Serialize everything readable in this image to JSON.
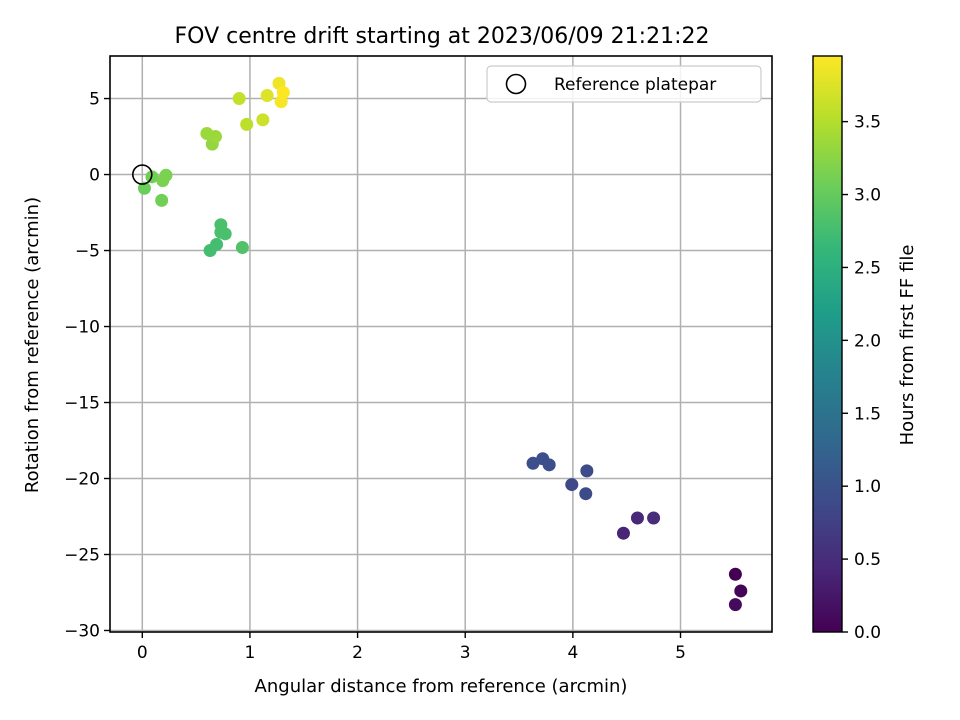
{
  "chart_data": {
    "type": "scatter",
    "title": "FOV centre drift starting at 2023/06/09 21:21:22",
    "xlabel": "Angular distance from reference (arcmin)",
    "ylabel": "Rotation from reference (arcmin)",
    "xlim": [
      -0.3,
      5.85
    ],
    "ylim": [
      -30.1,
      7.8
    ],
    "xticks": [
      0,
      1,
      2,
      3,
      4,
      5
    ],
    "xtick_labels": [
      "0",
      "1",
      "2",
      "3",
      "4",
      "5"
    ],
    "yticks": [
      -30,
      -25,
      -20,
      -15,
      -10,
      -5,
      0,
      5
    ],
    "ytick_labels": [
      "−30",
      "−25",
      "−20",
      "−15",
      "−10",
      "−5",
      "0",
      "5"
    ],
    "grid": true,
    "legend": {
      "placement": "upper-right",
      "entries": [
        "Reference platepar"
      ]
    },
    "reference_point": {
      "x": 0,
      "y": 0,
      "label": "Reference platepar"
    },
    "colormap": "viridis",
    "colorbar": {
      "label": "Hours from first FF file",
      "range": [
        0.0,
        3.95
      ],
      "ticks": [
        0.0,
        0.5,
        1.0,
        1.5,
        2.0,
        2.5,
        3.0,
        3.5
      ],
      "tick_labels": [
        "0.0",
        "0.5",
        "1.0",
        "1.5",
        "2.0",
        "2.5",
        "3.0",
        "3.5"
      ]
    },
    "points": [
      {
        "x": 5.51,
        "y": -26.3,
        "hours": 0.0
      },
      {
        "x": 5.56,
        "y": -27.4,
        "hours": 0.05
      },
      {
        "x": 5.51,
        "y": -28.3,
        "hours": 0.1
      },
      {
        "x": 4.47,
        "y": -23.6,
        "hours": 0.4
      },
      {
        "x": 4.6,
        "y": -22.6,
        "hours": 0.45
      },
      {
        "x": 4.75,
        "y": -22.6,
        "hours": 0.5
      },
      {
        "x": 3.99,
        "y": -20.4,
        "hours": 0.85
      },
      {
        "x": 4.12,
        "y": -21.0,
        "hours": 0.9
      },
      {
        "x": 4.13,
        "y": -19.5,
        "hours": 0.9
      },
      {
        "x": 3.63,
        "y": -19.0,
        "hours": 0.95
      },
      {
        "x": 3.72,
        "y": -18.7,
        "hours": 0.95
      },
      {
        "x": 3.78,
        "y": -19.1,
        "hours": 0.95
      },
      {
        "x": 0.63,
        "y": -5.0,
        "hours": 2.75
      },
      {
        "x": 0.69,
        "y": -4.6,
        "hours": 2.75
      },
      {
        "x": 0.73,
        "y": -3.3,
        "hours": 2.8
      },
      {
        "x": 0.73,
        "y": -3.8,
        "hours": 2.8
      },
      {
        "x": 0.77,
        "y": -3.9,
        "hours": 2.8
      },
      {
        "x": 0.93,
        "y": -4.8,
        "hours": 2.85
      },
      {
        "x": 0.02,
        "y": -0.9,
        "hours": 3.05
      },
      {
        "x": 0.09,
        "y": -0.15,
        "hours": 3.1
      },
      {
        "x": 0.18,
        "y": -1.7,
        "hours": 3.1
      },
      {
        "x": 0.19,
        "y": -0.4,
        "hours": 3.15
      },
      {
        "x": 0.22,
        "y": -0.05,
        "hours": 3.15
      },
      {
        "x": 0.65,
        "y": 2.0,
        "hours": 3.3
      },
      {
        "x": 0.6,
        "y": 2.7,
        "hours": 3.35
      },
      {
        "x": 0.68,
        "y": 2.5,
        "hours": 3.35
      },
      {
        "x": 0.9,
        "y": 5.0,
        "hours": 3.6
      },
      {
        "x": 0.97,
        "y": 3.3,
        "hours": 3.55
      },
      {
        "x": 1.12,
        "y": 3.6,
        "hours": 3.65
      },
      {
        "x": 1.16,
        "y": 5.2,
        "hours": 3.75
      },
      {
        "x": 1.27,
        "y": 6.0,
        "hours": 3.85
      },
      {
        "x": 1.29,
        "y": 4.8,
        "hours": 3.9
      },
      {
        "x": 1.31,
        "y": 5.4,
        "hours": 3.95
      }
    ]
  }
}
